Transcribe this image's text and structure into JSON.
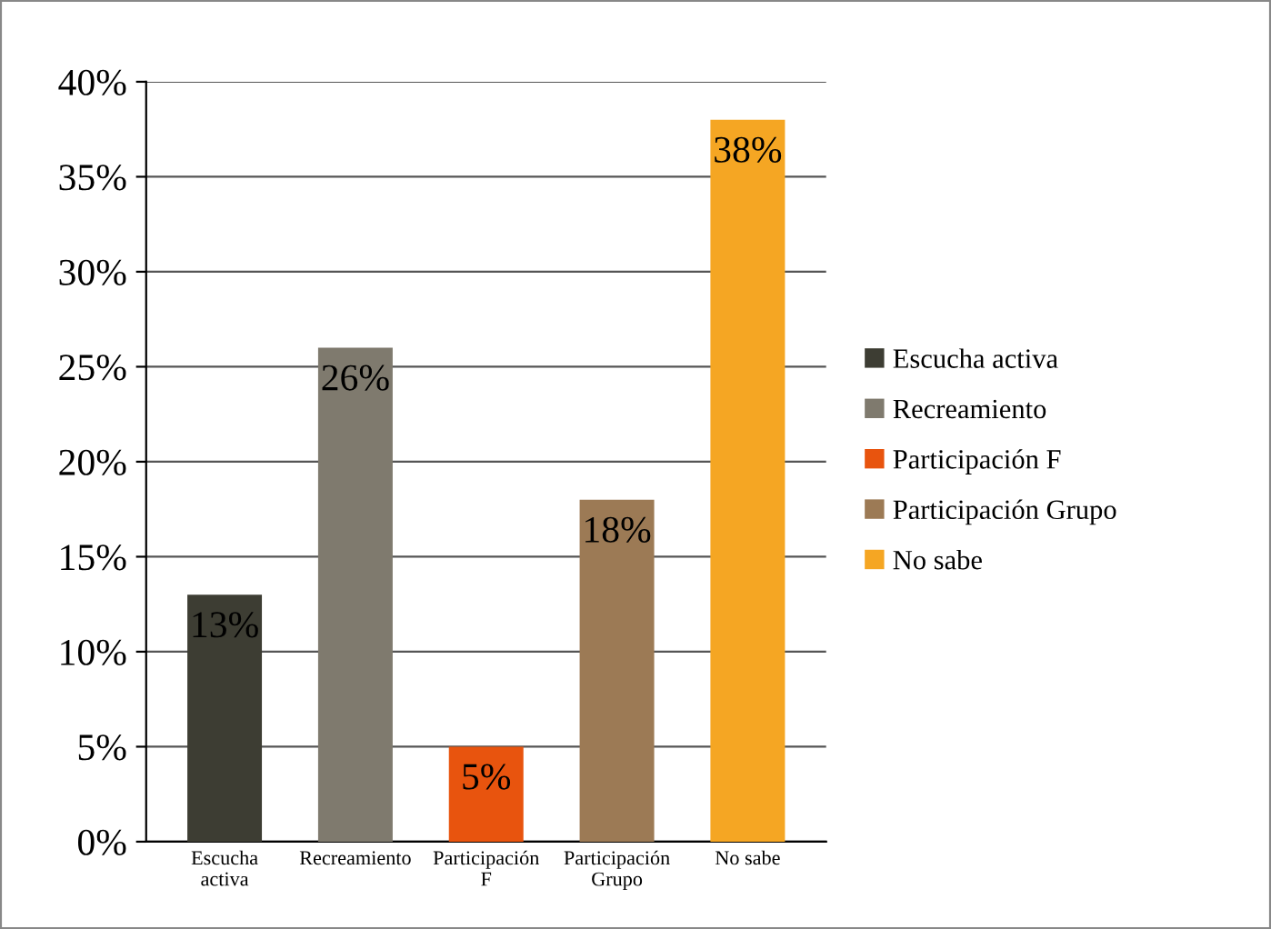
{
  "chart_data": {
    "type": "bar",
    "categories": [
      "Escucha activa",
      "Recreamiento",
      "Participación F",
      "Participación Grupo",
      "No sabe"
    ],
    "series": [
      {
        "name": "Escucha activa",
        "color": "#3d3d33",
        "values": [
          13,
          null,
          null,
          null,
          null
        ],
        "value_labels": [
          "13%",
          null,
          null,
          null,
          null
        ]
      },
      {
        "name": "Recreamiento",
        "color": "#7f7a6e",
        "values": [
          null,
          26,
          null,
          null,
          null
        ],
        "value_labels": [
          null,
          "26%",
          null,
          null,
          null
        ]
      },
      {
        "name": "Participación F",
        "color": "#e8540e",
        "values": [
          null,
          null,
          5,
          null,
          null
        ],
        "value_labels": [
          null,
          null,
          "5%",
          null,
          null
        ]
      },
      {
        "name": "Participación Grupo",
        "color": "#9c7a55",
        "values": [
          null,
          null,
          null,
          18,
          null
        ],
        "value_labels": [
          null,
          null,
          null,
          "18%",
          null
        ]
      },
      {
        "name": "No sabe",
        "color": "#f5a623",
        "values": [
          null,
          null,
          null,
          null,
          38
        ],
        "value_labels": [
          null,
          null,
          null,
          null,
          "38%"
        ]
      }
    ],
    "ylim": [
      0,
      40
    ],
    "yticks": [
      {
        "value": 0,
        "label": "0%"
      },
      {
        "value": 5,
        "label": "5%"
      },
      {
        "value": 10,
        "label": "10%"
      },
      {
        "value": 15,
        "label": "15%"
      },
      {
        "value": 20,
        "label": "20%"
      },
      {
        "value": 25,
        "label": "25%"
      },
      {
        "value": 30,
        "label": "30%"
      },
      {
        "value": 35,
        "label": "35%"
      },
      {
        "value": 40,
        "label": "40%"
      }
    ],
    "grid": "y",
    "legend": "right"
  }
}
